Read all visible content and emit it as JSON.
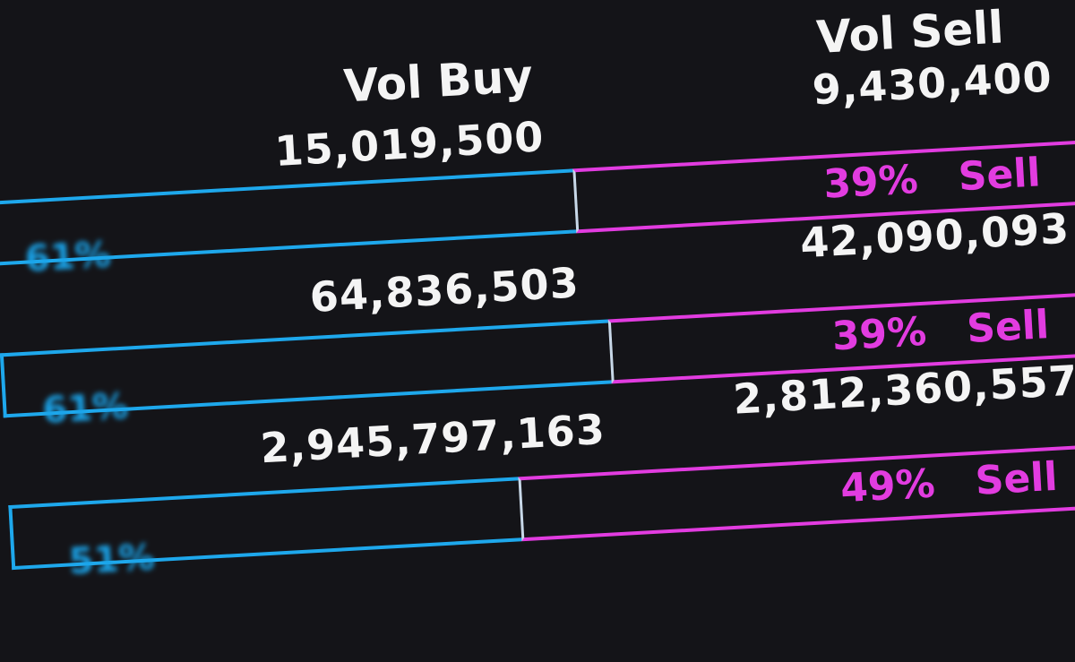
{
  "header": {
    "vol_buy": "Vol Buy",
    "vol_sell": "Vol Sell"
  },
  "colors": {
    "buy": "#1ea8ec",
    "sell": "#e23ce0",
    "background": "#141418"
  },
  "rows": [
    {
      "buy": "15,019,500",
      "sell": "9,430,400",
      "buy_pct": "61%",
      "sell_pct": "39%",
      "sell_label": "Sell"
    },
    {
      "buy": "64,836,503",
      "sell": "42,090,093",
      "buy_pct": "61%",
      "sell_pct": "39%",
      "sell_label": "Sell"
    },
    {
      "buy": "2,945,797,163",
      "sell": "2,812,360,557",
      "buy_pct": "51%",
      "sell_pct": "49%",
      "sell_label": "Sell"
    }
  ]
}
